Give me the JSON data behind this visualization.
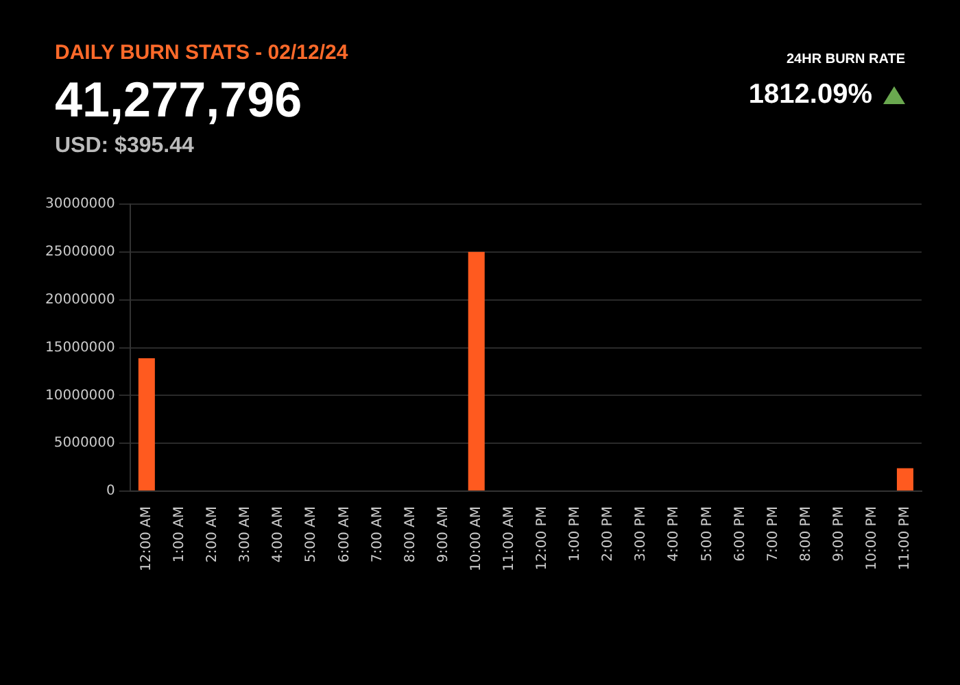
{
  "chart_data": {
    "type": "bar",
    "title": "DAILY BURN STATS - 02/12/24",
    "subtitle": "41,277,796",
    "annotations": [
      "USD: $395.44",
      "24HR BURN RATE",
      "1812.09%"
    ],
    "categories": [
      "12:00 AM",
      "1:00 AM",
      "2:00 AM",
      "3:00 AM",
      "4:00 AM",
      "5:00 AM",
      "6:00 AM",
      "7:00 AM",
      "8:00 AM",
      "9:00 AM",
      "10:00 AM",
      "11:00 AM",
      "12:00 PM",
      "1:00 PM",
      "2:00 PM",
      "3:00 PM",
      "4:00 PM",
      "5:00 PM",
      "6:00 PM",
      "7:00 PM",
      "8:00 PM",
      "9:00 PM",
      "10:00 PM",
      "11:00 PM"
    ],
    "values": [
      13900000,
      0,
      0,
      0,
      0,
      0,
      0,
      0,
      0,
      0,
      25000000,
      0,
      0,
      0,
      0,
      0,
      0,
      0,
      0,
      0,
      0,
      0,
      0,
      2400000
    ],
    "color": "#ff5a1f",
    "ylim": [
      0,
      30000000
    ],
    "yticks": [
      0,
      5000000,
      10000000,
      15000000,
      20000000,
      25000000,
      30000000
    ],
    "grid": "y",
    "legend": false
  }
}
